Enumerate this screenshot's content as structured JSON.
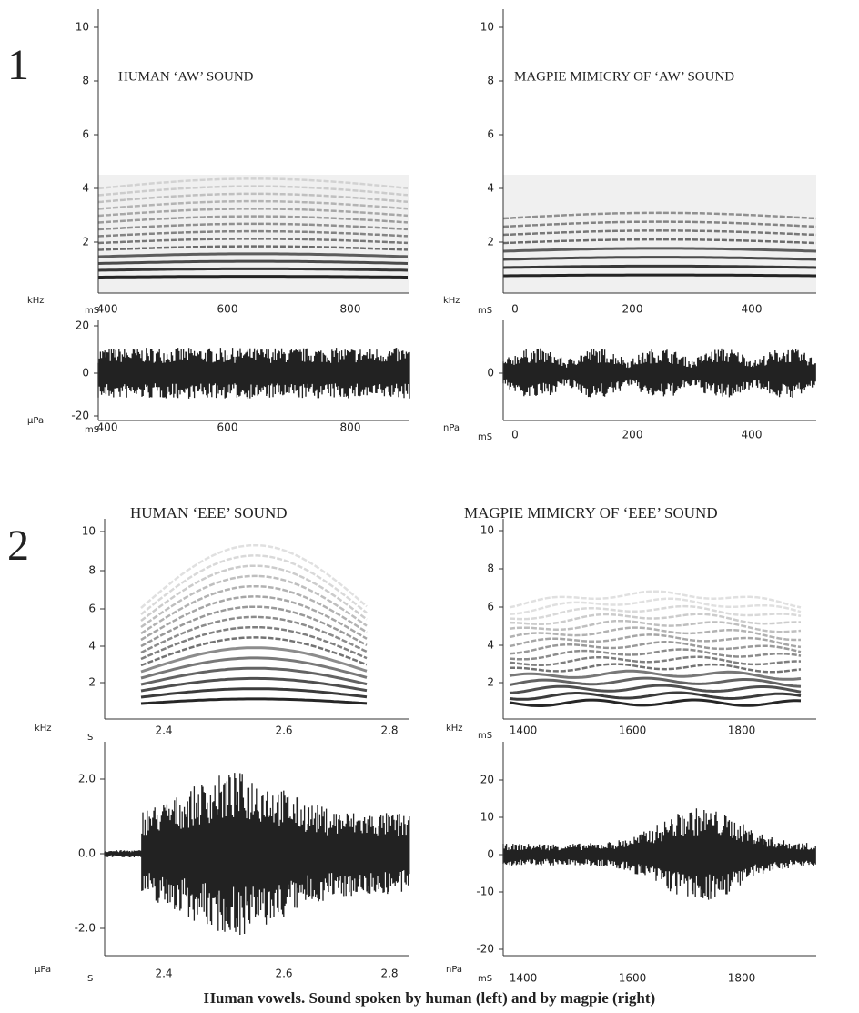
{
  "sections": [
    "1",
    "2"
  ],
  "panels": [
    {
      "title": "HUMAN ‘AW’ SOUND",
      "spectrogram": {
        "y_ticks": [
          "10",
          "8",
          "6",
          "4",
          "2"
        ],
        "x_ticks": [
          "400",
          "600",
          "800"
        ],
        "y_unit": "kHz",
        "x_unit": "mS"
      },
      "waveform": {
        "y_ticks": [
          "20",
          "0",
          "-20"
        ],
        "x_ticks": [
          "400",
          "600",
          "800"
        ],
        "y_unit": "µPa",
        "x_unit": "mS"
      }
    },
    {
      "title": "MAGPIE  MIMICRY OF ‘AW’ SOUND",
      "spectrogram": {
        "y_ticks": [
          "10",
          "8",
          "6",
          "4",
          "2"
        ],
        "x_ticks": [
          "0",
          "200",
          "400"
        ],
        "y_unit": "kHz",
        "x_unit": "mS"
      },
      "waveform": {
        "y_ticks": [
          "0"
        ],
        "x_ticks": [
          "0",
          "200",
          "400"
        ],
        "y_unit": "nPa",
        "x_unit": "mS"
      }
    },
    {
      "title": "HUMAN ‘EEE’ SOUND",
      "spectrogram": {
        "y_ticks": [
          "10",
          "8",
          "6",
          "4",
          "2"
        ],
        "x_ticks": [
          "2.4",
          "2.6",
          "2.8"
        ],
        "y_unit": "kHz",
        "x_unit": "S"
      },
      "waveform": {
        "y_ticks": [
          "2.0",
          "0.0",
          "-2.0"
        ],
        "x_ticks": [
          "2.4",
          "2.6",
          "2.8"
        ],
        "y_unit": "µPa",
        "x_unit": "S"
      }
    },
    {
      "title": "MAGPIE MIMICRY OF ‘EEE’ SOUND",
      "spectrogram": {
        "y_ticks": [
          "10",
          "8",
          "6",
          "4",
          "2"
        ],
        "x_ticks": [
          "1400",
          "1600",
          "1800"
        ],
        "y_unit": "kHz",
        "x_unit": "mS"
      },
      "waveform": {
        "y_ticks": [
          "20",
          "10",
          "0",
          "-10",
          "-20"
        ],
        "x_ticks": [
          "1400",
          "1600",
          "1800"
        ],
        "y_unit": "nPa",
        "x_unit": "mS"
      }
    }
  ],
  "caption": "Human vowels. Sound spoken by human (left) and by magpie (right)"
}
